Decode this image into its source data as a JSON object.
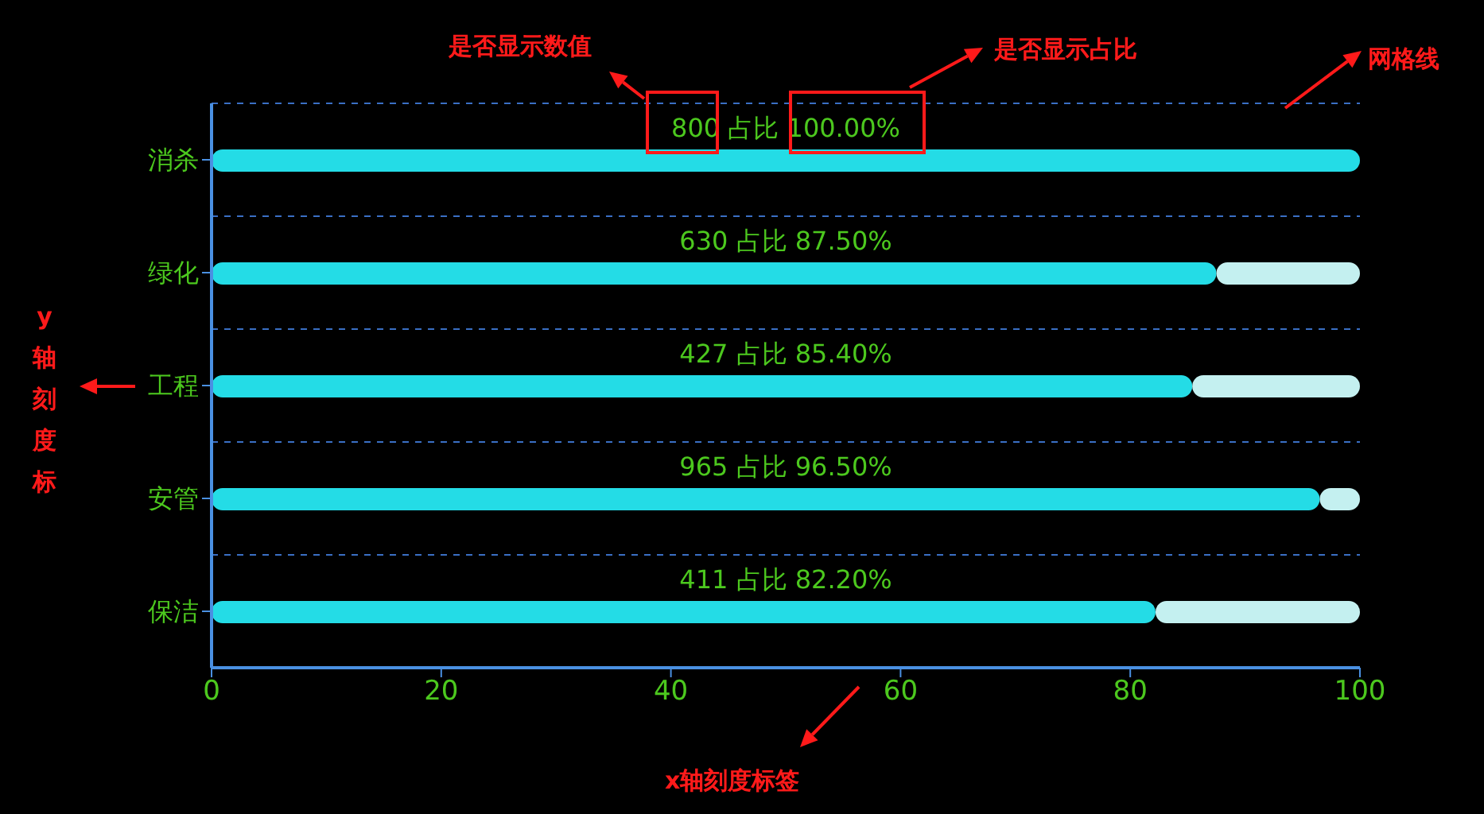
{
  "chart_data": {
    "type": "bar",
    "orientation": "horizontal",
    "stacked": true,
    "categories": [
      "消杀",
      "绿化",
      "工程",
      "安管",
      "保洁"
    ],
    "series": [
      {
        "color": "#24dce6",
        "values": [
          100,
          87.5,
          85.4,
          96.5,
          82.2
        ],
        "value_labels": [
          "800 占比 100.00%",
          "630 占比 87.50%",
          "427 占比 85.40%",
          "965 占比 96.50%",
          "411 占比 82.20%"
        ]
      },
      {
        "color": "#c4f0f0",
        "values": [
          null,
          12.5,
          14.6,
          3.5,
          17.8
        ]
      }
    ],
    "xlim": [
      0,
      100
    ],
    "xticks": [
      0,
      20,
      40,
      60,
      80,
      100
    ],
    "grid": "y",
    "legend": false,
    "annotations": [
      "是否显示数值",
      "是否显示占比",
      "网格线",
      "y轴刻度标",
      "x轴刻度标签"
    ]
  }
}
